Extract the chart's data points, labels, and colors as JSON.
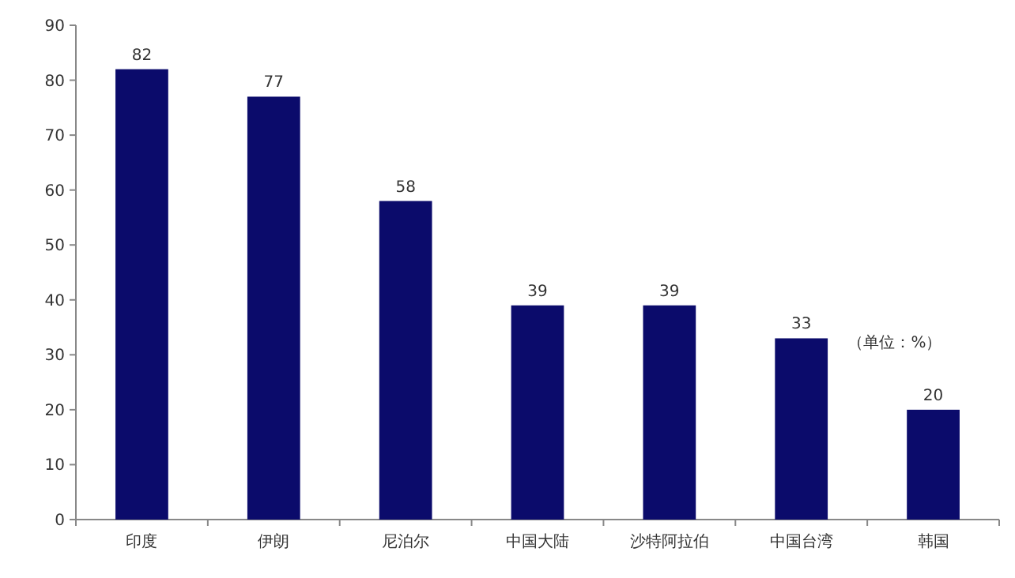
{
  "chart_data": {
    "type": "bar",
    "categories": [
      "印度",
      "伊朗",
      "尼泊尔",
      "中国大陆",
      "沙特阿拉伯",
      "中国台湾",
      "韩国"
    ],
    "values": [
      82,
      77,
      58,
      39,
      39,
      33,
      20
    ],
    "color": "#0b0b6b",
    "ylim": [
      0,
      90
    ],
    "yticks": [
      0,
      10,
      20,
      30,
      40,
      50,
      60,
      70,
      80,
      90
    ],
    "data_labels": true,
    "annotations": [
      "（单位：%）"
    ]
  }
}
